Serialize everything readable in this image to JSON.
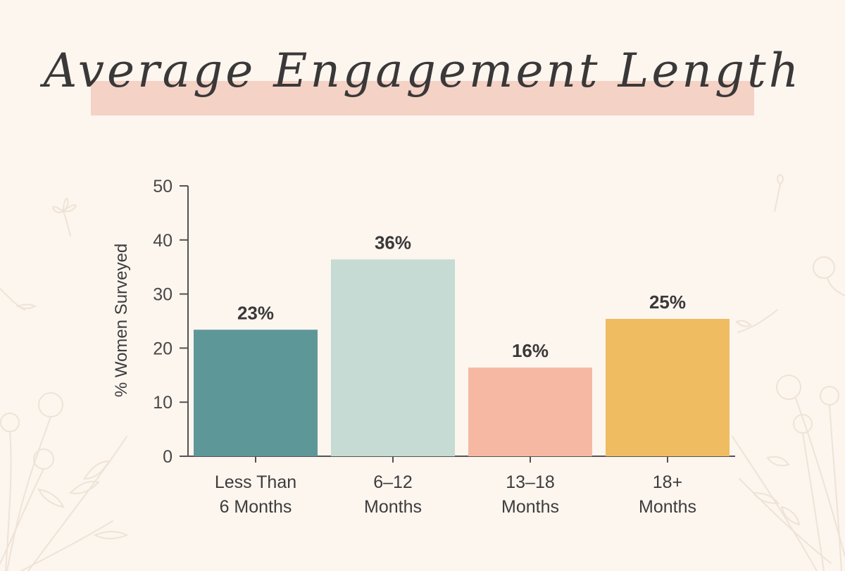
{
  "chart_data": {
    "type": "bar",
    "title": "Average Engagement Length",
    "xlabel": "",
    "ylabel": "% Women Surveyed",
    "ylim": [
      0,
      50
    ],
    "yticks": [
      0,
      10,
      20,
      30,
      40,
      50
    ],
    "grid": false,
    "legend": "none",
    "categories": [
      [
        "Less Than",
        "6 Months"
      ],
      [
        "6–12",
        "Months"
      ],
      [
        "13–18",
        "Months"
      ],
      [
        "18+",
        "Months"
      ]
    ],
    "values": [
      23,
      36,
      16,
      25
    ],
    "value_labels": [
      "23%",
      "36%",
      "16%",
      "25%"
    ],
    "colors": [
      "#5E9798",
      "#C5DBD3",
      "#F7B8A3",
      "#F0BC62"
    ]
  },
  "theme": {
    "background": "#FCF6EF",
    "title_highlight": "#F4D2C5",
    "text": "#3A3838",
    "axis": "#555252"
  }
}
